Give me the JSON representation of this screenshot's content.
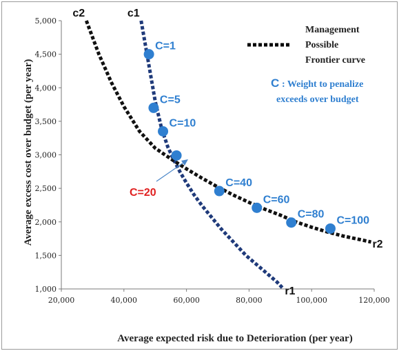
{
  "chart_data": {
    "type": "scatter",
    "xlabel": "Average expected risk due to Deterioration  (per year)",
    "ylabel": "Average excess cost over budget (per year)",
    "xlim": [
      20000,
      120000
    ],
    "ylim": [
      1000,
      5000
    ],
    "x_ticks": [
      "20,000",
      "40,000",
      "60,000",
      "80,000",
      "100,000",
      "120,000"
    ],
    "y_ticks": [
      "1,000",
      "1,500",
      "2,000",
      "2,500",
      "3,000",
      "3,500",
      "4,000",
      "4,500",
      "5,000"
    ],
    "grid": false,
    "legend": {
      "position": "top-right",
      "line1": "Management",
      "line2": "Possible",
      "line3": "Frontier curve"
    },
    "weight_note": {
      "symbol": "C",
      "line1": ": Weight to penalize",
      "line2": "exceeds over budget"
    },
    "points": [
      {
        "label": "C=1",
        "x": 48000,
        "y": 4500
      },
      {
        "label": "C=5",
        "x": 49500,
        "y": 3700
      },
      {
        "label": "C=10",
        "x": 52500,
        "y": 3350
      },
      {
        "label": "C=20",
        "x": 56800,
        "y": 2990
      },
      {
        "label": "C=40",
        "x": 70500,
        "y": 2460
      },
      {
        "label": "C=60",
        "x": 82500,
        "y": 2210
      },
      {
        "label": "C=80",
        "x": 93500,
        "y": 1990
      },
      {
        "label": "C=100",
        "x": 106000,
        "y": 1900
      }
    ],
    "curves": [
      {
        "name": "c1",
        "end_label": "r1",
        "color": "#1f3a7a",
        "x": [
          45500,
          47000,
          48500,
          50000,
          52000,
          54000,
          56000,
          58000,
          60000,
          62500,
          65000,
          68000,
          71000,
          75000,
          79000,
          84000,
          89000,
          91000
        ],
        "y": [
          5000,
          4600,
          4200,
          3800,
          3400,
          3120,
          2920,
          2740,
          2580,
          2400,
          2240,
          2070,
          1900,
          1700,
          1500,
          1300,
          1100,
          1000
        ]
      },
      {
        "name": "c2",
        "end_label": "r2",
        "color": "#111111",
        "x": [
          28000,
          32000,
          36000,
          40000,
          45000,
          50000,
          55000,
          60000,
          65000,
          70000,
          75000,
          80000,
          85000,
          90000,
          95000,
          100000,
          105000,
          110000,
          115000,
          119000
        ],
        "y": [
          5000,
          4500,
          4080,
          3720,
          3350,
          3100,
          2940,
          2790,
          2650,
          2520,
          2400,
          2290,
          2190,
          2100,
          2000,
          1920,
          1850,
          1790,
          1740,
          1700
        ]
      }
    ],
    "arrow_label": "C=20",
    "colors": {
      "point": "#2f7fd0",
      "point_label": "#2f7fd0",
      "arrow_label": "#e02020",
      "axis": "#7a7a7a"
    }
  }
}
